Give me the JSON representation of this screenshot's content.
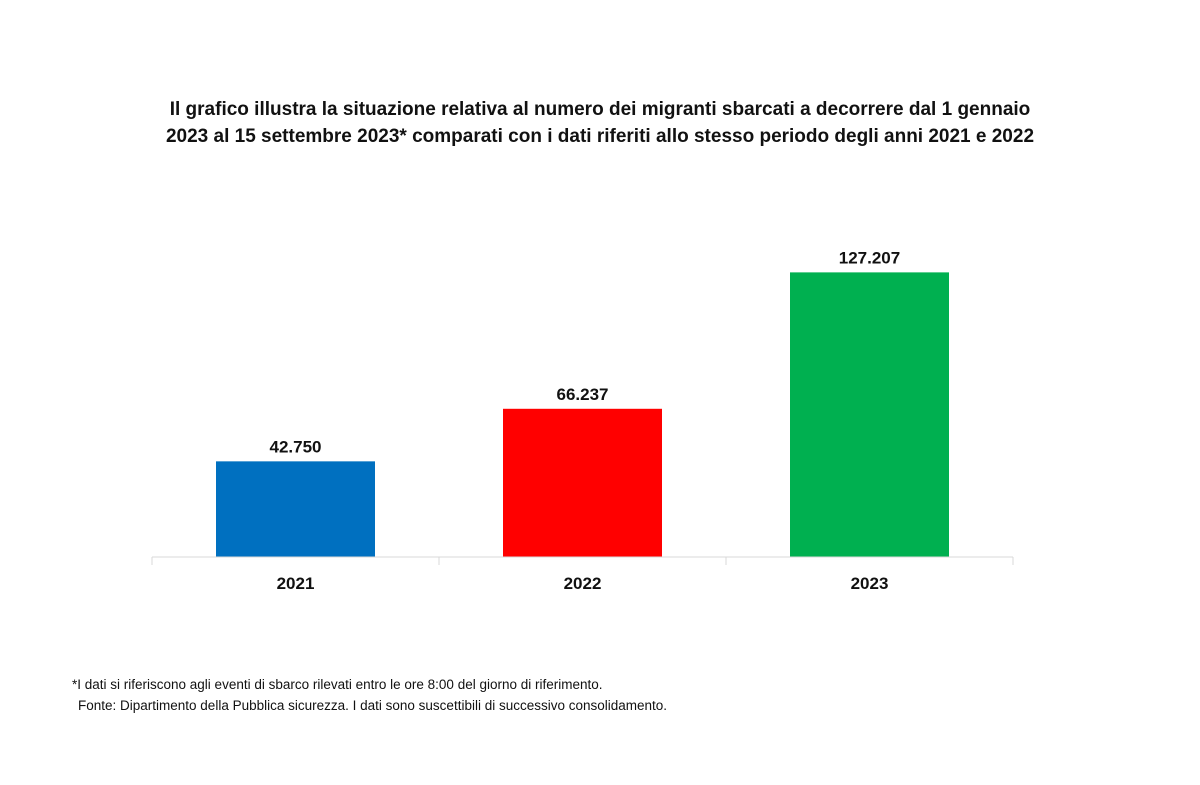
{
  "chart_data": {
    "type": "bar",
    "title": "Il grafico illustra la situazione relativa al numero dei migranti sbarcati a decorrere dal 1 gennaio 2023 al 15 settembre 2023* comparati con i dati riferiti allo stesso periodo degli anni 2021 e 2022",
    "categories": [
      "2021",
      "2022",
      "2023"
    ],
    "values": [
      42750,
      66237,
      127207
    ],
    "value_labels": [
      "42.750",
      "66.237",
      "127.207"
    ],
    "colors": [
      "#0070c0",
      "#ff0000",
      "#00b050"
    ],
    "xlabel": "",
    "ylabel": "",
    "ylim": [
      0,
      160000
    ],
    "grid": false,
    "legend": "none"
  },
  "footnotes": {
    "note": "*I dati si riferiscono agli eventi di sbarco rilevati entro le ore 8:00 del giorno di riferimento.",
    "source": "Fonte: Dipartimento della Pubblica sicurezza. I dati sono suscettibili di successivo consolidamento."
  }
}
